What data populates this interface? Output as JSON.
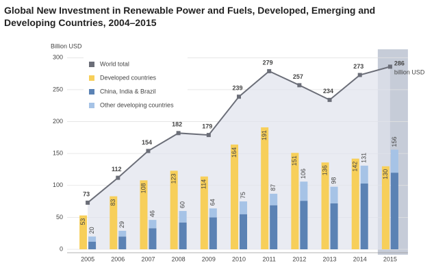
{
  "chart_data": {
    "type": "bar",
    "title": "Global New Investment in Renewable Power and Fuels, Developed, Emerging and Developing Countries, 2004–2015",
    "y_label": "Billion USD",
    "categories": [
      "2005",
      "2006",
      "2007",
      "2008",
      "2009",
      "2010",
      "2011",
      "2012",
      "2013",
      "2014",
      "2015"
    ],
    "series": [
      {
        "name": "World total",
        "type": "line",
        "color": "#6b6e78",
        "values": [
          73,
          112,
          154,
          182,
          179,
          239,
          279,
          257,
          234,
          273,
          286
        ]
      },
      {
        "name": "Developed countries",
        "type": "bar",
        "color": "#f7cf5a",
        "values": [
          53,
          83,
          108,
          123,
          114,
          164,
          191,
          151,
          136,
          142,
          130
        ]
      },
      {
        "name": "China, India & Brazil",
        "type": "bar",
        "stack": "emerging",
        "color": "#5b82b4",
        "values": [
          12,
          20,
          33,
          42,
          50,
          55,
          69,
          76,
          72,
          103,
          120
        ]
      },
      {
        "name": "Other developing countries",
        "type": "bar",
        "stack": "emerging",
        "color": "#a6c3e6",
        "values": [
          8,
          9,
          13,
          18,
          14,
          20,
          18,
          30,
          26,
          28,
          36
        ]
      }
    ],
    "emerging_totals": [
      20,
      29,
      46,
      60,
      64,
      75,
      87,
      106,
      98,
      131,
      156
    ],
    "annotation": "billion USD",
    "ylim": [
      0,
      310
    ],
    "yticks": [
      0,
      50,
      100,
      150,
      200,
      250,
      300
    ],
    "grid": true
  }
}
